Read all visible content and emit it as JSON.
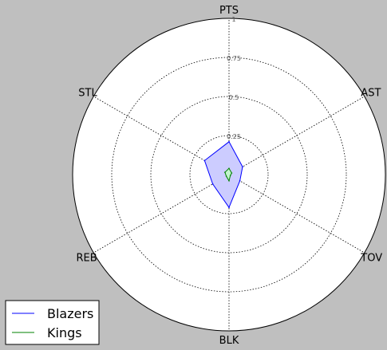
{
  "chart_data": {
    "type": "radar",
    "axes": [
      "PTS",
      "AST",
      "TOV",
      "BLK",
      "REB",
      "STL"
    ],
    "rlim": [
      0,
      1
    ],
    "rticks": [
      0.25,
      0.5,
      0.75,
      1
    ],
    "rtick_labels": [
      "0.25",
      "0.5",
      "0.75",
      "1"
    ],
    "grid": true,
    "legend_position": "bottom-left",
    "series": [
      {
        "name": "Blazers",
        "values": [
          0.21,
          0.1,
          0.08,
          0.21,
          0.12,
          0.18
        ],
        "stroke": "#0000ff",
        "fill": "#ccccff",
        "fill_opacity": 1
      },
      {
        "name": "Kings",
        "values": [
          0.04,
          0.02,
          0.01,
          0.04,
          0.02,
          0.03
        ],
        "stroke": "#008000",
        "fill": "#bfffbf",
        "fill_opacity": 0.8
      }
    ]
  }
}
